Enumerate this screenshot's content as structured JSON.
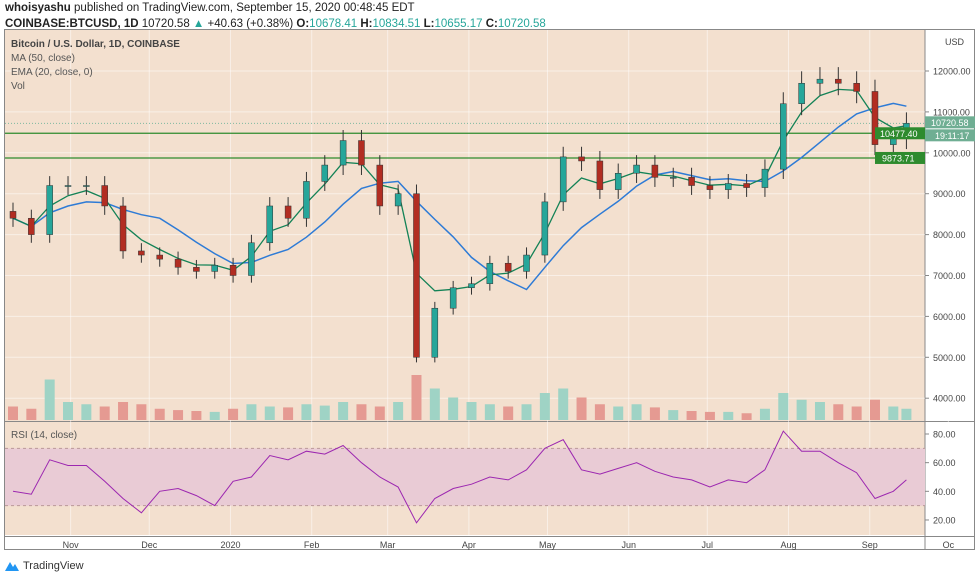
{
  "header": {
    "author": "whoisyashu",
    "published": "published on TradingView.com, September 15, 2020 00:48:45 EDT",
    "symbol": "COINBASE:BTCUSD, 1D",
    "last": "10720.58",
    "change": "+40.63 (+0.38%)",
    "o_label": "O:",
    "o": "10678.41",
    "h_label": "H:",
    "h": "10834.51",
    "l_label": "L:",
    "l": "10655.17",
    "c_label": "C:",
    "c": "10720.58"
  },
  "legend": {
    "title": "Bitcoin / U.S. Dollar, 1D, COINBASE",
    "ma": "MA (50, close)",
    "ema": "EMA (20, close, 0)",
    "vol": "Vol"
  },
  "rsi_label": "RSI (14, close)",
  "footer": {
    "brand": "TradingView"
  },
  "colors": {
    "bg": "#f3e0cf",
    "up": "#26a69a",
    "down": "#b22d22",
    "ma": "#2e7bd6",
    "ema": "#138256",
    "level": "#2e8b2e",
    "rsi": "#9c27b0",
    "rsi_band": "#e9cbd5"
  },
  "chart_data": {
    "type": "candlestick",
    "price_axis": {
      "unit": "USD",
      "ticks": [
        "12000.00",
        "11000.00",
        "10000.00",
        "9000.00",
        "8000.00",
        "7000.00",
        "6000.00",
        "5000.00",
        "4000.00"
      ],
      "range": [
        3500,
        13000
      ]
    },
    "price_labels": {
      "last": "10720.58",
      "countdown": "19:11:17",
      "level1": "10477.40",
      "level2": "9873.71"
    },
    "levels": [
      10477.4,
      9873.71
    ],
    "x_ticks": [
      "Nov",
      "Dec",
      "2020",
      "Feb",
      "Mar",
      "Apr",
      "May",
      "Jun",
      "Jul",
      "Aug",
      "Sep",
      "Oc"
    ],
    "dates": [
      "2019-10-10",
      "2019-10-17",
      "2019-10-24",
      "2019-10-31",
      "2019-11-07",
      "2019-11-14",
      "2019-11-21",
      "2019-11-28",
      "2019-12-05",
      "2019-12-12",
      "2019-12-19",
      "2019-12-26",
      "2020-01-02",
      "2020-01-09",
      "2020-01-16",
      "2020-01-23",
      "2020-01-30",
      "2020-02-06",
      "2020-02-13",
      "2020-02-20",
      "2020-02-27",
      "2020-03-05",
      "2020-03-12",
      "2020-03-19",
      "2020-03-26",
      "2020-04-02",
      "2020-04-09",
      "2020-04-16",
      "2020-04-23",
      "2020-04-30",
      "2020-05-07",
      "2020-05-14",
      "2020-05-21",
      "2020-05-28",
      "2020-06-04",
      "2020-06-11",
      "2020-06-18",
      "2020-06-25",
      "2020-07-02",
      "2020-07-09",
      "2020-07-16",
      "2020-07-23",
      "2020-07-30",
      "2020-08-06",
      "2020-08-13",
      "2020-08-20",
      "2020-08-27",
      "2020-09-03",
      "2020-09-10",
      "2020-09-15"
    ],
    "close": [
      8400,
      8000,
      9200,
      9200,
      9200,
      8700,
      7600,
      7500,
      7400,
      7200,
      7100,
      7250,
      7000,
      7800,
      8700,
      8400,
      9300,
      9700,
      10300,
      9700,
      8700,
      9000,
      5000,
      6200,
      6700,
      6800,
      7300,
      7100,
      7500,
      8800,
      9900,
      9800,
      9100,
      9500,
      9700,
      9400,
      9400,
      9200,
      9100,
      9250,
      9150,
      9600,
      11200,
      11700,
      11800,
      11700,
      11500,
      10200,
      10350,
      10720.58
    ],
    "volume": [
      30,
      25,
      90,
      40,
      35,
      30,
      40,
      35,
      25,
      22,
      20,
      18,
      25,
      35,
      30,
      28,
      35,
      32,
      40,
      35,
      30,
      40,
      100,
      70,
      50,
      40,
      35,
      30,
      35,
      60,
      70,
      50,
      35,
      30,
      35,
      28,
      22,
      20,
      18,
      18,
      15,
      25,
      60,
      45,
      40,
      35,
      30,
      45,
      30,
      25
    ],
    "rsi": {
      "ticks": [
        "80.00",
        "60.00",
        "40.00",
        "20.00"
      ],
      "bands": [
        30,
        70
      ],
      "values": [
        40,
        38,
        62,
        58,
        58,
        47,
        35,
        25,
        40,
        42,
        37,
        30,
        47,
        50,
        65,
        62,
        68,
        66,
        72,
        60,
        50,
        43,
        18,
        35,
        42,
        45,
        50,
        48,
        55,
        70,
        76,
        55,
        52,
        56,
        60,
        54,
        50,
        48,
        43,
        48,
        46,
        55,
        82,
        68,
        68,
        60,
        53,
        35,
        40,
        48
      ]
    }
  }
}
